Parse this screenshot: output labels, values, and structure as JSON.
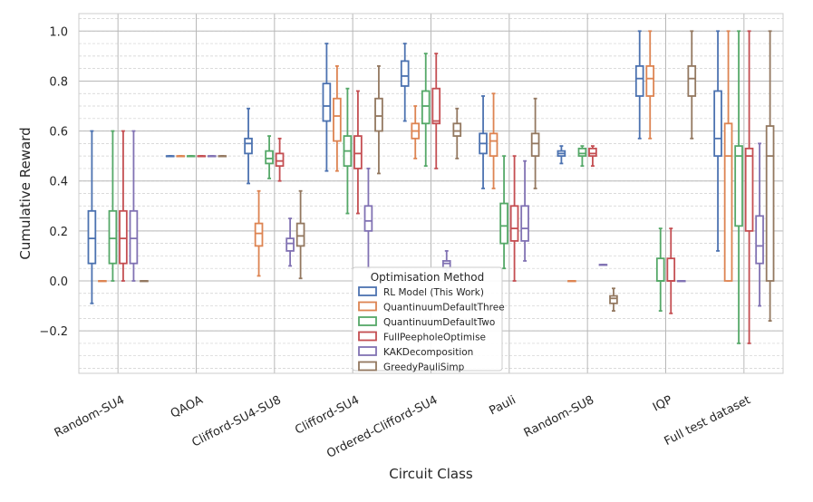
{
  "chart_data": {
    "type": "boxplot",
    "xlabel": "Circuit Class",
    "ylabel": "Cumulative Reward",
    "ylim": [
      -0.37,
      1.07
    ],
    "yticks": [
      -0.2,
      0.0,
      0.2,
      0.4,
      0.6,
      0.8,
      1.0
    ],
    "ytick_labels": [
      "−0.2",
      "0.0",
      "0.2",
      "0.4",
      "0.6",
      "0.8",
      "1.0"
    ],
    "grid": true,
    "legend_title": "Optimisation Method",
    "legend_position": "bottom-center",
    "categories": [
      "Random-SU4",
      "QAOA",
      "Clifford-SU4-SU8",
      "Clifford-SU4",
      "Ordered-Clifford-SU4",
      "Pauli",
      "Random-SU8",
      "IQP",
      "Full test dataset"
    ],
    "series": [
      {
        "name": "RL Model (This Work)",
        "color": "#4c72b0",
        "boxes": [
          [
            -0.09,
            0.07,
            0.17,
            0.28,
            0.6
          ],
          [
            0.5,
            0.5,
            0.5,
            0.5,
            0.5
          ],
          [
            0.39,
            0.51,
            0.55,
            0.57,
            0.69
          ],
          [
            0.44,
            0.64,
            0.7,
            0.79,
            0.95
          ],
          [
            0.64,
            0.78,
            0.82,
            0.88,
            0.95
          ],
          [
            0.37,
            0.51,
            0.55,
            0.59,
            0.74
          ],
          [
            0.47,
            0.5,
            0.51,
            0.52,
            0.54
          ],
          [
            0.57,
            0.74,
            0.81,
            0.86,
            1.0
          ],
          [
            0.12,
            0.5,
            0.57,
            0.76,
            1.0
          ]
        ]
      },
      {
        "name": "QuantinuumDefaultThree",
        "color": "#dd8452",
        "boxes": [
          [
            0.0,
            0.0,
            0.0,
            0.0,
            0.0
          ],
          [
            0.5,
            0.5,
            0.5,
            0.5,
            0.5
          ],
          [
            0.02,
            0.14,
            0.19,
            0.23,
            0.36
          ],
          [
            0.44,
            0.56,
            0.66,
            0.73,
            0.86
          ],
          [
            0.49,
            0.57,
            0.6,
            0.63,
            0.7
          ],
          [
            0.37,
            0.5,
            0.56,
            0.59,
            0.75
          ],
          [
            0.0,
            0.0,
            0.0,
            0.0,
            0.0
          ],
          [
            0.57,
            0.74,
            0.81,
            0.86,
            1.0
          ],
          [
            0.0,
            0.0,
            0.5,
            0.63,
            1.0
          ]
        ]
      },
      {
        "name": "QuantinuumDefaultTwo",
        "color": "#55a868",
        "boxes": [
          [
            0.0,
            0.07,
            0.17,
            0.28,
            0.6
          ],
          [
            0.5,
            0.5,
            0.5,
            0.5,
            0.5
          ],
          [
            0.41,
            0.47,
            0.49,
            0.52,
            0.58
          ],
          [
            0.27,
            0.46,
            0.52,
            0.58,
            0.77
          ],
          [
            0.46,
            0.63,
            0.7,
            0.76,
            0.91
          ],
          [
            0.05,
            0.15,
            0.22,
            0.31,
            0.5
          ],
          [
            0.46,
            0.5,
            0.51,
            0.53,
            0.54
          ],
          [
            -0.12,
            0.0,
            0.0,
            0.09,
            0.21
          ],
          [
            -0.25,
            0.22,
            0.5,
            0.54,
            1.0
          ]
        ]
      },
      {
        "name": "FullPeepholeOptimise",
        "color": "#c44e52",
        "boxes": [
          [
            0.0,
            0.07,
            0.17,
            0.28,
            0.6
          ],
          [
            0.5,
            0.5,
            0.5,
            0.5,
            0.5
          ],
          [
            0.4,
            0.46,
            0.48,
            0.51,
            0.57
          ],
          [
            0.27,
            0.45,
            0.51,
            0.58,
            0.76
          ],
          [
            0.45,
            0.63,
            0.64,
            0.77,
            0.91
          ],
          [
            0.0,
            0.16,
            0.21,
            0.3,
            0.5
          ],
          [
            0.46,
            0.5,
            0.51,
            0.53,
            0.54
          ],
          [
            -0.13,
            0.0,
            0.0,
            0.09,
            0.21
          ],
          [
            -0.25,
            0.2,
            0.5,
            0.53,
            1.0
          ]
        ]
      },
      {
        "name": "KAKDecomposition",
        "color": "#8172b3",
        "boxes": [
          [
            0.0,
            0.07,
            0.17,
            0.28,
            0.6
          ],
          [
            0.5,
            0.5,
            0.5,
            0.5,
            0.5
          ],
          [
            0.06,
            0.12,
            0.15,
            0.17,
            0.25
          ],
          [
            0.05,
            0.2,
            0.24,
            0.3,
            0.45
          ],
          [
            0.04,
            0.05,
            0.07,
            0.08,
            0.12
          ],
          [
            0.08,
            0.16,
            0.21,
            0.3,
            0.48
          ],
          [
            0.065,
            0.065,
            0.065,
            0.065,
            0.065
          ],
          [
            0.0,
            0.0,
            0.0,
            0.0,
            0.0
          ],
          [
            -0.1,
            0.07,
            0.14,
            0.26,
            0.55
          ]
        ]
      },
      {
        "name": "GreedyPauliSimp",
        "color": "#937860",
        "boxes": [
          [
            0.0,
            0.0,
            0.0,
            0.0,
            0.0
          ],
          [
            0.5,
            0.5,
            0.5,
            0.5,
            0.5
          ],
          [
            0.01,
            0.14,
            0.18,
            0.23,
            0.36
          ],
          [
            0.43,
            0.6,
            0.66,
            0.73,
            0.86
          ],
          [
            0.49,
            0.58,
            0.6,
            0.63,
            0.69
          ],
          [
            0.37,
            0.5,
            0.55,
            0.59,
            0.73
          ],
          [
            -0.12,
            -0.09,
            -0.07,
            -0.06,
            -0.03
          ],
          [
            0.57,
            0.74,
            0.81,
            0.86,
            1.0
          ],
          [
            -0.16,
            0.0,
            0.5,
            0.62,
            1.0
          ]
        ]
      }
    ]
  }
}
